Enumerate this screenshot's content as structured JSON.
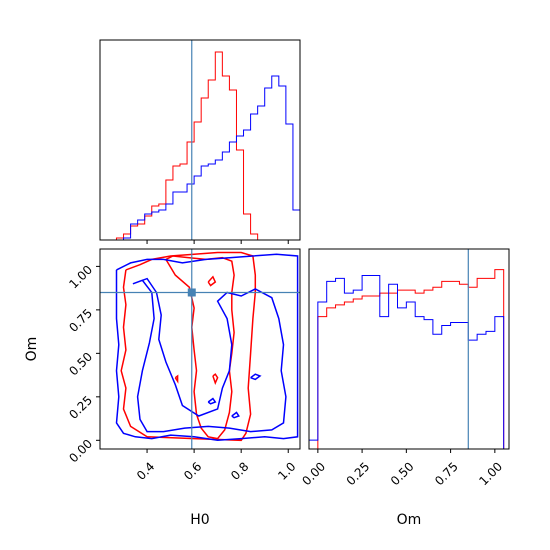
{
  "chart_data": [
    {
      "type": "histogram",
      "panel": "H0 marginal",
      "x_range": [
        0.2,
        1.05
      ],
      "bin_edges": [
        0.27,
        0.3,
        0.33,
        0.36,
        0.39,
        0.42,
        0.45,
        0.48,
        0.51,
        0.54,
        0.57,
        0.6,
        0.63,
        0.66,
        0.69,
        0.72,
        0.75,
        0.78,
        0.81,
        0.84,
        0.87,
        0.9,
        0.93,
        0.96,
        0.99,
        1.02,
        1.05
      ],
      "truth": 0.59,
      "series": [
        {
          "color": "#ff0000",
          "values": [
            0.01,
            0.03,
            0.07,
            0.08,
            0.12,
            0.17,
            0.18,
            0.3,
            0.37,
            0.38,
            0.49,
            0.59,
            0.71,
            0.8,
            0.94,
            0.82,
            0.75,
            0.45,
            0.13,
            0.03,
            0,
            0,
            0,
            0,
            0,
            0
          ]
        },
        {
          "color": "#0000ff",
          "values": [
            0,
            0.01,
            0.08,
            0.1,
            0.13,
            0.14,
            0.15,
            0.18,
            0.24,
            0.24,
            0.28,
            0.32,
            0.37,
            0.38,
            0.4,
            0.44,
            0.49,
            0.52,
            0.55,
            0.63,
            0.67,
            0.76,
            0.82,
            0.77,
            0.58,
            0.15
          ]
        }
      ]
    },
    {
      "type": "contour",
      "panel": "H0 vs Om",
      "xlabel": "H0",
      "ylabel": "Om",
      "x_range": [
        0.2,
        1.05
      ],
      "y_range": [
        -0.05,
        1.1
      ],
      "xticks": [
        "0.4",
        "0.6",
        "0.8",
        "1.0"
      ],
      "yticks": [
        "0.00",
        "0.25",
        "0.50",
        "0.75",
        "1.00"
      ],
      "truth": {
        "x": 0.59,
        "y": 0.85
      },
      "series": [
        {
          "color": "#ff0000",
          "contours": [
            [
              [
                0.48,
                1.04
              ],
              [
                0.51,
                1.06
              ],
              [
                0.58,
                1.05
              ],
              [
                0.65,
                1.04
              ],
              [
                0.72,
                1.05
              ],
              [
                0.76,
                1.03
              ],
              [
                0.77,
                0.95
              ],
              [
                0.76,
                0.85
              ],
              [
                0.76,
                0.75
              ],
              [
                0.77,
                0.62
              ],
              [
                0.76,
                0.5
              ],
              [
                0.75,
                0.4
              ],
              [
                0.76,
                0.28
              ],
              [
                0.75,
                0.16
              ],
              [
                0.73,
                0.06
              ],
              [
                0.7,
                0.01
              ],
              [
                0.66,
                0.02
              ],
              [
                0.63,
                0.07
              ],
              [
                0.61,
                0.15
              ],
              [
                0.6,
                0.28
              ],
              [
                0.61,
                0.4
              ],
              [
                0.6,
                0.52
              ],
              [
                0.59,
                0.65
              ],
              [
                0.6,
                0.76
              ],
              [
                0.58,
                0.88
              ],
              [
                0.52,
                0.95
              ],
              [
                0.48,
                1.04
              ]
            ],
            [
              [
                0.31,
                0.98
              ],
              [
                0.37,
                1.01
              ],
              [
                0.42,
                1.04
              ],
              [
                0.5,
                1.06
              ],
              [
                0.6,
                1.07
              ],
              [
                0.7,
                1.08
              ],
              [
                0.8,
                1.08
              ],
              [
                0.85,
                1.06
              ],
              [
                0.86,
                0.95
              ],
              [
                0.86,
                0.85
              ],
              [
                0.85,
                0.7
              ],
              [
                0.84,
                0.5
              ],
              [
                0.83,
                0.3
              ],
              [
                0.84,
                0.15
              ],
              [
                0.82,
                0.04
              ],
              [
                0.8,
                0.0
              ],
              [
                0.6,
                0.01
              ],
              [
                0.4,
                0.02
              ],
              [
                0.33,
                0.08
              ],
              [
                0.3,
                0.18
              ],
              [
                0.31,
                0.3
              ],
              [
                0.29,
                0.4
              ],
              [
                0.31,
                0.52
              ],
              [
                0.3,
                0.65
              ],
              [
                0.31,
                0.78
              ],
              [
                0.3,
                0.88
              ],
              [
                0.31,
                0.98
              ]
            ],
            [
              [
                0.66,
                0.91
              ],
              [
                0.68,
                0.94
              ],
              [
                0.69,
                0.91
              ],
              [
                0.67,
                0.89
              ],
              [
                0.66,
                0.91
              ]
            ],
            [
              [
                0.68,
                0.37
              ],
              [
                0.69,
                0.33
              ],
              [
                0.7,
                0.36
              ],
              [
                0.69,
                0.38
              ],
              [
                0.68,
                0.37
              ]
            ],
            [
              [
                0.52,
                0.36
              ],
              [
                0.53,
                0.34
              ],
              [
                0.53,
                0.37
              ],
              [
                0.52,
                0.36
              ]
            ]
          ]
        },
        {
          "color": "#0000ff",
          "contours": [
            [
              [
                0.27,
                0.98
              ],
              [
                0.33,
                1.02
              ],
              [
                0.4,
                1.04
              ],
              [
                0.47,
                1.04
              ],
              [
                0.55,
                1.02
              ],
              [
                0.65,
                1.04
              ],
              [
                0.75,
                1.05
              ],
              [
                0.85,
                1.06
              ],
              [
                0.95,
                1.07
              ],
              [
                1.04,
                1.06
              ],
              [
                1.04,
                0.95
              ],
              [
                1.04,
                0.8
              ],
              [
                1.04,
                0.6
              ],
              [
                1.04,
                0.4
              ],
              [
                1.04,
                0.25
              ],
              [
                1.04,
                0.1
              ],
              [
                1.04,
                0.02
              ],
              [
                0.98,
                0.01
              ],
              [
                0.9,
                0.02
              ],
              [
                0.8,
                0.01
              ],
              [
                0.7,
                0.0
              ],
              [
                0.6,
                0.02
              ],
              [
                0.5,
                0.03
              ],
              [
                0.42,
                0.01
              ],
              [
                0.35,
                0.02
              ],
              [
                0.3,
                0.04
              ],
              [
                0.27,
                0.1
              ],
              [
                0.28,
                0.25
              ],
              [
                0.27,
                0.4
              ],
              [
                0.28,
                0.55
              ],
              [
                0.27,
                0.7
              ],
              [
                0.27,
                0.85
              ],
              [
                0.27,
                0.98
              ]
            ],
            [
              [
                0.34,
                0.9
              ],
              [
                0.38,
                0.92
              ],
              [
                0.42,
                0.85
              ],
              [
                0.43,
                0.7
              ],
              [
                0.41,
                0.56
              ],
              [
                0.38,
                0.4
              ],
              [
                0.36,
                0.25
              ],
              [
                0.37,
                0.12
              ],
              [
                0.4,
                0.05
              ],
              [
                0.47,
                0.05
              ],
              [
                0.56,
                0.07
              ],
              [
                0.66,
                0.08
              ],
              [
                0.75,
                0.07
              ],
              [
                0.84,
                0.05
              ],
              [
                0.93,
                0.06
              ],
              [
                0.98,
                0.1
              ],
              [
                0.99,
                0.25
              ],
              [
                0.97,
                0.4
              ],
              [
                0.98,
                0.55
              ],
              [
                0.96,
                0.7
              ],
              [
                0.93,
                0.82
              ],
              [
                0.86,
                0.87
              ],
              [
                0.8,
                0.83
              ],
              [
                0.74,
                0.85
              ],
              [
                0.7,
                0.8
              ],
              [
                0.74,
                0.7
              ],
              [
                0.76,
                0.55
              ],
              [
                0.75,
                0.4
              ],
              [
                0.72,
                0.3
              ],
              [
                0.7,
                0.18
              ],
              [
                0.62,
                0.14
              ],
              [
                0.55,
                0.2
              ],
              [
                0.52,
                0.32
              ],
              [
                0.48,
                0.45
              ],
              [
                0.45,
                0.58
              ],
              [
                0.46,
                0.72
              ],
              [
                0.44,
                0.85
              ],
              [
                0.4,
                0.93
              ],
              [
                0.34,
                0.9
              ]
            ],
            [
              [
                0.84,
                0.36
              ],
              [
                0.86,
                0.38
              ],
              [
                0.88,
                0.37
              ],
              [
                0.86,
                0.35
              ],
              [
                0.84,
                0.36
              ]
            ],
            [
              [
                0.76,
                0.14
              ],
              [
                0.78,
                0.16
              ],
              [
                0.79,
                0.14
              ],
              [
                0.77,
                0.13
              ],
              [
                0.76,
                0.14
              ]
            ],
            [
              [
                0.66,
                0.22
              ],
              [
                0.68,
                0.24
              ],
              [
                0.69,
                0.22
              ],
              [
                0.67,
                0.21
              ],
              [
                0.66,
                0.22
              ]
            ]
          ]
        }
      ]
    },
    {
      "type": "histogram",
      "panel": "Om marginal",
      "xlabel": "Om",
      "x_range": [
        -0.05,
        1.08
      ],
      "xticks": [
        "0.00",
        "0.25",
        "0.50",
        "0.75",
        "1.00"
      ],
      "bin_edges": [
        -0.05,
        0.0,
        0.05,
        0.1,
        0.15,
        0.2,
        0.25,
        0.3,
        0.35,
        0.4,
        0.45,
        0.5,
        0.55,
        0.6,
        0.65,
        0.7,
        0.75,
        0.8,
        0.85,
        0.9,
        0.95,
        1.0,
        1.05
      ],
      "truth": 0.85,
      "series": [
        {
          "color": "#ff0000",
          "values": [
            0,
            0.45,
            0.48,
            0.49,
            0.5,
            0.51,
            0.52,
            0.52,
            0.53,
            0.53,
            0.54,
            0.54,
            0.53,
            0.54,
            0.55,
            0.57,
            0.57,
            0.56,
            0.55,
            0.58,
            0.58,
            0.61
          ]
        },
        {
          "color": "#0000ff",
          "values": [
            0.03,
            0.5,
            0.57,
            0.58,
            0.53,
            0.54,
            0.59,
            0.59,
            0.45,
            0.56,
            0.48,
            0.5,
            0.45,
            0.44,
            0.39,
            0.42,
            0.43,
            0.43,
            0.37,
            0.39,
            0.4,
            0.45
          ]
        }
      ]
    }
  ]
}
